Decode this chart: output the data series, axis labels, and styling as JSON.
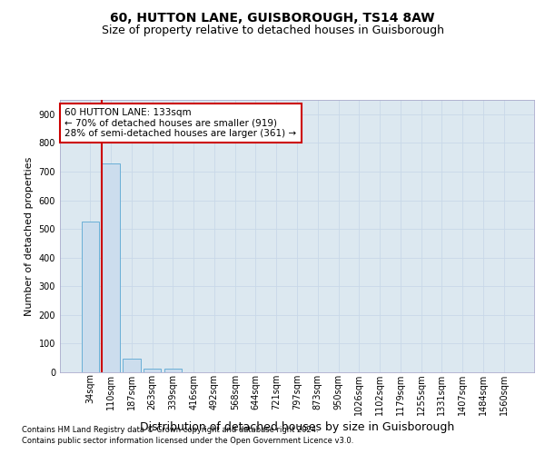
{
  "title": "60, HUTTON LANE, GUISBOROUGH, TS14 8AW",
  "subtitle": "Size of property relative to detached houses in Guisborough",
  "xlabel": "Distribution of detached houses by size in Guisborough",
  "ylabel": "Number of detached properties",
  "footnote1": "Contains HM Land Registry data © Crown copyright and database right 2024.",
  "footnote2": "Contains public sector information licensed under the Open Government Licence v3.0.",
  "bin_labels": [
    "34sqm",
    "110sqm",
    "187sqm",
    "263sqm",
    "339sqm",
    "416sqm",
    "492sqm",
    "568sqm",
    "644sqm",
    "721sqm",
    "797sqm",
    "873sqm",
    "950sqm",
    "1026sqm",
    "1102sqm",
    "1179sqm",
    "1255sqm",
    "1331sqm",
    "1407sqm",
    "1484sqm",
    "1560sqm"
  ],
  "bar_values": [
    527,
    727,
    48,
    13,
    13,
    0,
    0,
    0,
    0,
    0,
    0,
    0,
    0,
    0,
    0,
    0,
    0,
    0,
    0,
    0,
    0
  ],
  "bar_color": "#ccdded",
  "bar_edge_color": "#6aafd6",
  "highlight_color": "#cc0000",
  "annotation_text": "60 HUTTON LANE: 133sqm\n← 70% of detached houses are smaller (919)\n28% of semi-detached houses are larger (361) →",
  "annotation_box_color": "#cc0000",
  "ylim": [
    0,
    950
  ],
  "yticks": [
    0,
    100,
    200,
    300,
    400,
    500,
    600,
    700,
    800,
    900
  ],
  "grid_color": "#c8d8e8",
  "bg_color": "#dce8f0",
  "title_fontsize": 10,
  "subtitle_fontsize": 9,
  "xlabel_fontsize": 9,
  "ylabel_fontsize": 8,
  "tick_fontsize": 7,
  "footnote_fontsize": 6,
  "annotation_fontsize": 7.5
}
